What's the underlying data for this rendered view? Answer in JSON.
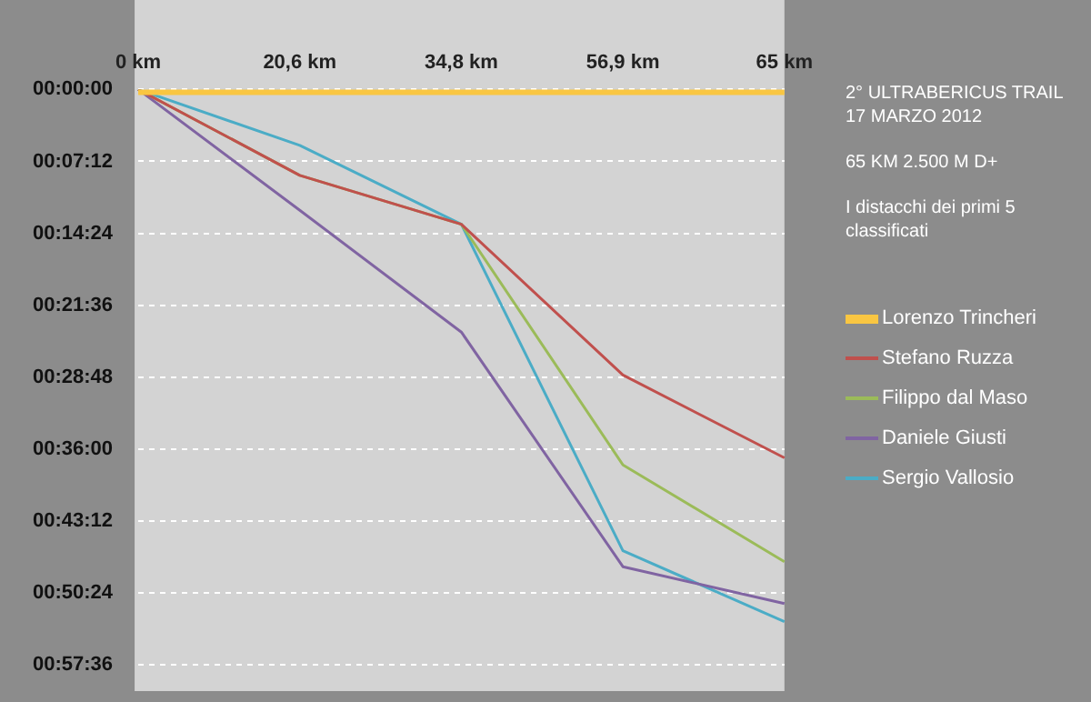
{
  "chart_data": {
    "type": "line",
    "title": "2° ULTRABERICUS TRAIL",
    "subtitle": "17 MARZO 2012",
    "annotations": [
      "65 KM 2.500 M D+",
      "I distacchi dei primi 5 classificati"
    ],
    "categories": [
      "0 km",
      "20,6 km",
      "34,8 km",
      "56,9 km",
      "65 km"
    ],
    "series": [
      {
        "name": "Lorenzo Trincheri",
        "color": "#f9c642",
        "values": [
          0,
          0,
          0,
          0,
          0
        ]
      },
      {
        "name": "Stefano Ruzza",
        "color": "#c0504d",
        "values": [
          0,
          8.6,
          13.5,
          28.6,
          36.9
        ]
      },
      {
        "name": "Filippo dal Maso",
        "color": "#9bbb59",
        "values": [
          0,
          8.6,
          13.5,
          37.6,
          47.3
        ]
      },
      {
        "name": "Daniele Giusti",
        "color": "#8064a2",
        "values": [
          0,
          12.1,
          24.3,
          47.8,
          51.5
        ]
      },
      {
        "name": "Sergio Vallosio",
        "color": "#4bacc6",
        "values": [
          0,
          5.6,
          13.5,
          46.2,
          53.3
        ]
      }
    ],
    "ylim": [
      57.6,
      0
    ],
    "yticks": [
      {
        "value": 0,
        "label": "00:00:00"
      },
      {
        "value": 7.2,
        "label": "00:07:12"
      },
      {
        "value": 14.4,
        "label": "00:14:24"
      },
      {
        "value": 21.6,
        "label": "00:21:36"
      },
      {
        "value": 28.8,
        "label": "00:28:48"
      },
      {
        "value": 36,
        "label": "00:36:00"
      },
      {
        "value": 43.2,
        "label": "00:43:12"
      },
      {
        "value": 50.4,
        "label": "00:50:24"
      },
      {
        "value": 57.6,
        "label": "00:57:36"
      }
    ],
    "grid": "y",
    "legend": "right",
    "marker": "none",
    "line_style": "solid"
  }
}
